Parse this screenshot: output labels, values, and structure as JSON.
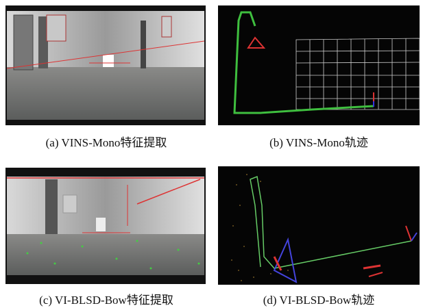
{
  "panels": [
    {
      "caption": "(a) VINS-Mono特征提取"
    },
    {
      "caption": "(b) VINS-Mono轨迹"
    },
    {
      "caption": "(c) VI-BLSD-Bow特征提取"
    },
    {
      "caption": "(d) VI-BLSD-Bow轨迹"
    }
  ]
}
